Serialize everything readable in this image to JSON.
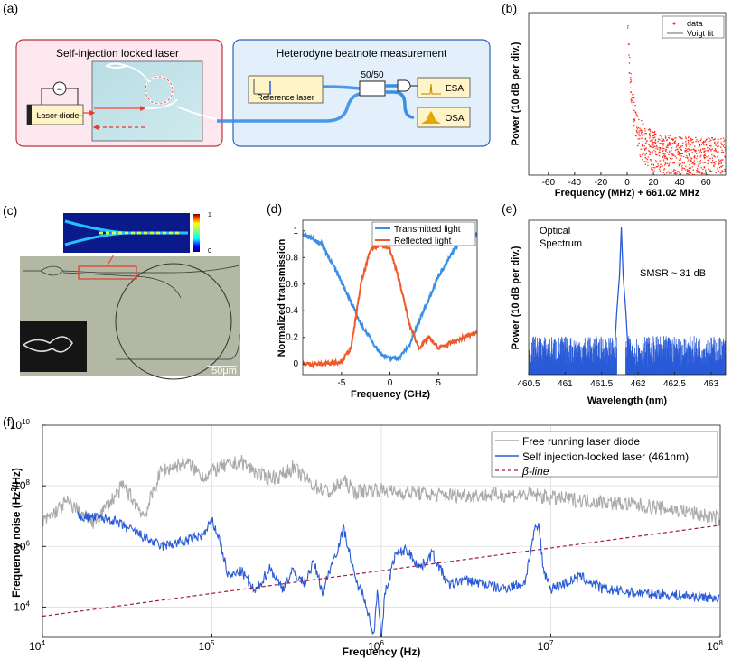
{
  "panel_labels": {
    "a": "(a)",
    "b": "(b)",
    "c": "(c)",
    "d": "(d)",
    "e": "(e)",
    "f": "(f)"
  },
  "colors": {
    "red": "#ff2a1a",
    "blue": "#2a5bd7",
    "orange": "#ee5a2a",
    "lightblue": "#3a8ee6",
    "gray": "#aaaaaa",
    "beta": "#a01d3a"
  },
  "panel_a": {
    "left_title": "Self-injection locked laser",
    "right_title": "Heterodyne beatnote measurement",
    "laser_diode": "Laser diode",
    "reference_laser": "Reference laser",
    "splitter": "50/50",
    "esa": "ESA",
    "osa": "OSA"
  },
  "panel_c": {
    "scalebar": "50μm",
    "colorbar_max": "1",
    "colorbar_min": "0"
  },
  "chart_data": [
    {
      "id": "b",
      "type": "scatter",
      "xlabel": "Frequency (MHz) + 661.02 MHz",
      "ylabel": "Power (10 dB per div.)",
      "xlim": [
        -75,
        75
      ],
      "xticks": [
        -60,
        -40,
        -20,
        0,
        20,
        40,
        60
      ],
      "legend": [
        "data",
        "Voigt fit"
      ],
      "legend_position": "top-right",
      "center": 0,
      "peak": 1.0,
      "wings_at_edges": 0.1,
      "grid": false
    },
    {
      "id": "d",
      "type": "line",
      "xlabel": "Frequency (GHz)",
      "ylabel": "Normalized transmission",
      "xlim": [
        -9,
        9
      ],
      "ylim": [
        -0.08,
        1.08
      ],
      "xticks": [
        -5,
        0,
        5
      ],
      "yticks": [
        0,
        0.2,
        0.4,
        0.6,
        0.8,
        1
      ],
      "legend_position": "top-right",
      "series": [
        {
          "name": "Transmitted light",
          "x": [
            -9,
            -7,
            -5,
            -3,
            -1,
            0,
            1,
            2,
            3,
            5,
            7,
            9
          ],
          "values": [
            0.98,
            0.9,
            0.62,
            0.3,
            0.08,
            0.04,
            0.05,
            0.14,
            0.32,
            0.66,
            0.9,
            0.98
          ]
        },
        {
          "name": "Reflected light",
          "x": [
            -9,
            -7,
            -5,
            -4,
            -3,
            -2,
            -1,
            0,
            1,
            2,
            3,
            4,
            5,
            7,
            9
          ],
          "values": [
            0.0,
            0.0,
            0.02,
            0.12,
            0.6,
            0.86,
            0.9,
            0.86,
            0.62,
            0.3,
            0.12,
            0.2,
            0.12,
            0.18,
            0.24
          ]
        }
      ]
    },
    {
      "id": "e",
      "type": "line",
      "xlabel": "Wavelength (nm)",
      "ylabel": "Power (10 dB per div.)",
      "xlim": [
        460.5,
        463.2
      ],
      "xticks": [
        460.5,
        461,
        461.5,
        462,
        462.5,
        463
      ],
      "annotations": [
        "Optical\nSpectrum",
        "SMSR ~ 31 dB"
      ],
      "peak_wavelength": 461.77,
      "noise_floor_fraction": 0.25
    },
    {
      "id": "f",
      "type": "line",
      "xlabel": "Frequency (Hz)",
      "ylabel": "Frequency noise (Hz²/Hz)",
      "xscale": "log",
      "yscale": "log",
      "xlim": [
        10000,
        100000000
      ],
      "ylim": [
        1000,
        10000000000
      ],
      "xtick_exponents": [
        4,
        5,
        6,
        7,
        8
      ],
      "ytick_exponents": [
        4,
        6,
        8,
        10
      ],
      "grid": true,
      "legend_position": "top-right",
      "series": [
        {
          "name": "Free running laser diode",
          "x": [
            10000,
            14000,
            20000,
            30000,
            40000,
            50000,
            70000,
            90000,
            110000,
            150000,
            200000,
            250000,
            300000,
            400000,
            500000,
            600000,
            700000,
            900000,
            1200000,
            1600000,
            2000000,
            3000000,
            5000000,
            8000000,
            10000000,
            20000000,
            40000000,
            60000000,
            100000000
          ],
          "values": [
            6000000,
            30000000,
            6000000,
            100000000,
            10000000,
            300000000,
            600000000,
            200000000,
            400000000,
            600000000,
            200000000,
            200000000,
            400000000,
            100000000,
            60000000,
            150000000,
            60000000,
            80000000,
            60000000,
            60000000,
            50000000,
            50000000,
            50000000,
            50000000,
            40000000,
            30000000,
            20000000,
            15000000,
            8000000
          ]
        },
        {
          "name": "Self injection-locked laser (461nm)",
          "x": [
            16000,
            25000,
            35000,
            50000,
            70000,
            90000,
            100000,
            110000,
            125000,
            150000,
            180000,
            220000,
            260000,
            300000,
            350000,
            400000,
            450000,
            500000,
            550000,
            600000,
            650000,
            700000,
            800000,
            900000,
            950000,
            1000000,
            1050000,
            1100000,
            1200000,
            1400000,
            1700000,
            2000000,
            2500000,
            3000000,
            4000000,
            5000000,
            6000000,
            7000000,
            8000000,
            8500000,
            9000000,
            10000000,
            12000000,
            15000000,
            20000000,
            30000000,
            50000000,
            100000000
          ],
          "values": [
            10000000,
            8000000,
            3000000,
            1000000,
            1500000,
            2500000,
            7000000,
            2000000,
            100000,
            150000,
            30000,
            200000,
            40000,
            150000,
            60000,
            300000,
            30000,
            200000,
            800000,
            4000000,
            600000,
            80000,
            20000,
            1000,
            50000,
            600,
            30000,
            60000,
            500000,
            800000,
            200000,
            600000,
            50000,
            80000,
            60000,
            40000,
            50000,
            60000,
            3000000,
            5000000,
            200000,
            40000,
            60000,
            100000,
            40000,
            30000,
            25000,
            20000
          ]
        },
        {
          "name": "β-line",
          "x": [
            10000,
            100000000
          ],
          "values": [
            5000,
            5000000
          ]
        }
      ]
    }
  ]
}
